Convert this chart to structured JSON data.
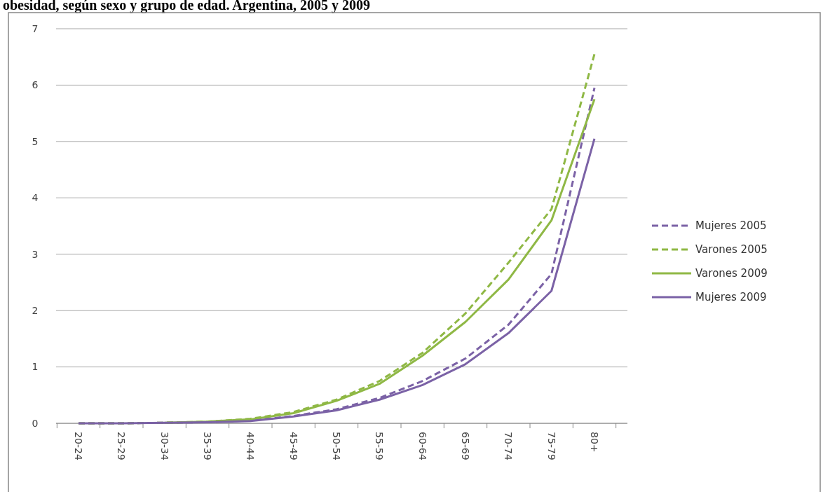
{
  "chart_data": {
    "type": "line",
    "title": "obesidad, según sexo y grupo de edad. Argentina, 2005 y 2009",
    "categories": [
      "20-24",
      "25-29",
      "30-34",
      "35-39",
      "40-44",
      "45-49",
      "50-54",
      "55-59",
      "60-64",
      "65-69",
      "70-74",
      "75-79",
      "80+"
    ],
    "series": [
      {
        "name": "Mujeres 2005",
        "color": "#7b62a6",
        "line_style": "dashed",
        "values": [
          0,
          0,
          0.01,
          0.02,
          0.05,
          0.13,
          0.25,
          0.45,
          0.75,
          1.15,
          1.75,
          2.65,
          5.95
        ]
      },
      {
        "name": "Varones 2005",
        "color": "#8fb845",
        "line_style": "dashed",
        "values": [
          0,
          0,
          0.01,
          0.03,
          0.08,
          0.2,
          0.42,
          0.75,
          1.25,
          1.95,
          2.85,
          3.8,
          6.55
        ]
      },
      {
        "name": "Varones 2009",
        "color": "#8fb845",
        "line_style": "solid",
        "values": [
          null,
          null,
          0.01,
          0.03,
          0.07,
          0.18,
          0.4,
          0.7,
          1.2,
          1.8,
          2.55,
          3.6,
          5.75
        ]
      },
      {
        "name": "Mujeres 2009",
        "color": "#7b62a6",
        "line_style": "solid",
        "values": [
          0,
          0,
          0.01,
          0.02,
          0.04,
          0.12,
          0.23,
          0.42,
          0.68,
          1.05,
          1.6,
          2.35,
          5.05
        ]
      }
    ],
    "ylim": [
      0,
      7
    ],
    "yticks": [
      0,
      1,
      2,
      3,
      4,
      5,
      6,
      7
    ],
    "grid": "y",
    "legend": "right",
    "marker": "none"
  }
}
